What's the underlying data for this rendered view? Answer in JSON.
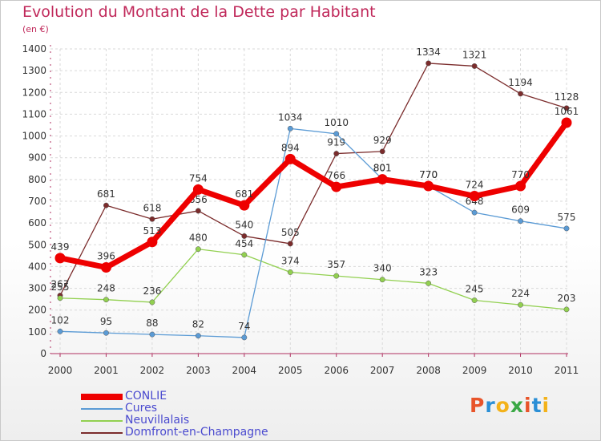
{
  "title": "Evolution du Montant de la Dette par Habitant",
  "unit": "(en €)",
  "logo": "Proxiti",
  "logo_colors": [
    "#e8542a",
    "#2a8fd6",
    "#f3b21a",
    "#3aa845",
    "#e8542a",
    "#2a8fd6",
    "#f3b21a"
  ],
  "chart_data": {
    "type": "line",
    "categories": [
      "2000",
      "2001",
      "2002",
      "2003",
      "2004",
      "2005",
      "2006",
      "2007",
      "2008",
      "2009",
      "2010",
      "2011"
    ],
    "ylim": [
      0,
      1400
    ],
    "yticks": [
      "0",
      "100",
      "200",
      "300",
      "400",
      "500",
      "600",
      "700",
      "800",
      "900",
      "1000",
      "1100",
      "1200",
      "1300",
      "1400"
    ],
    "legend_position": "bottom-left",
    "series": [
      {
        "name": "CONLIE",
        "color": "#ee0000",
        "values": [
          439,
          396,
          513,
          754,
          681,
          894,
          766,
          801,
          770,
          724,
          770,
          1061
        ],
        "labels": [
          "439",
          "396",
          "513",
          "754",
          "681",
          "894",
          "766",
          "801",
          "770",
          "724",
          "770",
          "1061"
        ]
      },
      {
        "name": "Cures",
        "color": "#5b9bd5",
        "values": [
          102,
          95,
          88,
          82,
          74,
          1034,
          1010,
          801,
          770,
          648,
          609,
          575
        ],
        "labels": [
          "102",
          "95",
          "88",
          "82",
          "74",
          "1034",
          "1010",
          "801",
          "770",
          "648",
          "609",
          "575"
        ]
      },
      {
        "name": "Neuvillalais",
        "color": "#92d050",
        "values": [
          255,
          248,
          236,
          480,
          454,
          374,
          357,
          340,
          323,
          245,
          224,
          203
        ],
        "labels": [
          "255",
          "248",
          "236",
          "480",
          "454",
          "374",
          "357",
          "340",
          "323",
          "245",
          "224",
          "203"
        ]
      },
      {
        "name": "Domfront-en-Champagne",
        "color": "#7b2c2c",
        "values": [
          267,
          681,
          618,
          656,
          540,
          505,
          919,
          929,
          1334,
          1321,
          1194,
          1128
        ],
        "labels": [
          "267",
          "681",
          "618",
          "656",
          "540",
          "505",
          "919",
          "929",
          "1334",
          "1321",
          "1194",
          "1128"
        ]
      }
    ]
  }
}
